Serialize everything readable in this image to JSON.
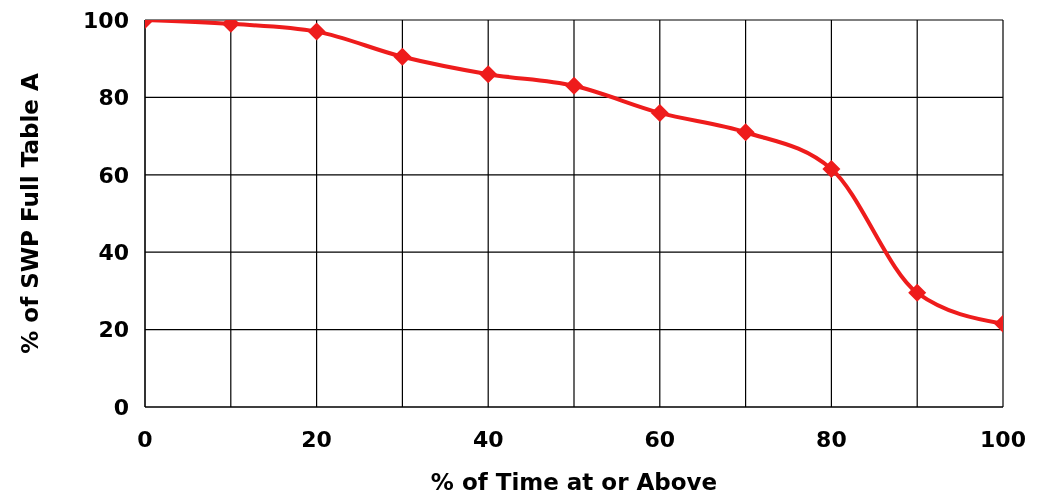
{
  "chart_data": {
    "type": "line",
    "xlabel": "% of Time at or Above",
    "ylabel": "% of SWP Full Table A",
    "x": [
      0,
      10,
      20,
      30,
      40,
      50,
      60,
      70,
      80,
      90,
      100
    ],
    "series": [
      {
        "color": "#ee1c1c",
        "values": [
          100,
          99,
          97,
          90.5,
          86,
          83,
          76,
          71,
          61.5,
          29.5,
          21.5
        ]
      }
    ],
    "xlim": [
      0,
      100
    ],
    "xticks": [
      0,
      {
        "value": 10,
        "label": null
      },
      20,
      {
        "value": 30,
        "label": null
      },
      40,
      {
        "value": 50,
        "label": null
      },
      60,
      {
        "value": 70,
        "label": null
      },
      80,
      {
        "value": 90,
        "label": null
      },
      100
    ],
    "ylim": [
      0,
      100
    ],
    "yticks": [
      0,
      20,
      40,
      60,
      80,
      100
    ],
    "grid": true,
    "marker": "diamond",
    "line_style": "solid"
  }
}
